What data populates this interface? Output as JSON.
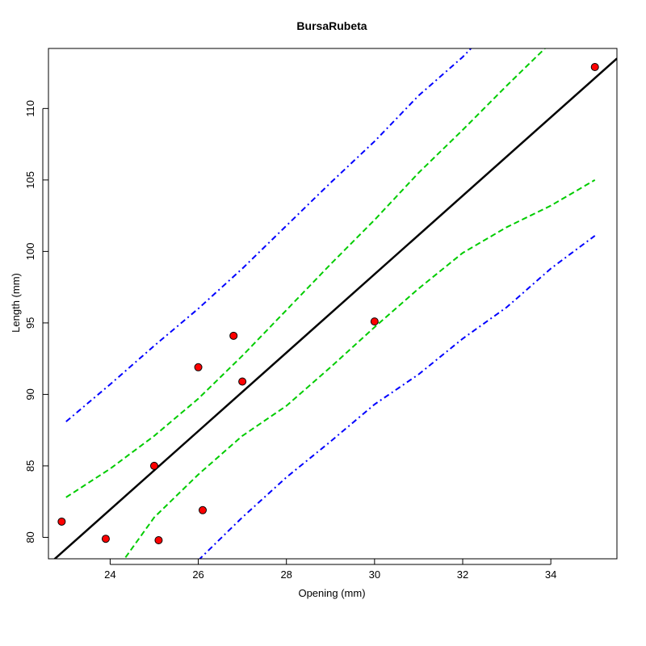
{
  "chart_data": {
    "type": "scatter",
    "title": "BursaRubeta",
    "xlabel": "Opening (mm)",
    "ylabel": "Length (mm)",
    "xlim": [
      22.6,
      35.5
    ],
    "ylim": [
      78.5,
      114.2
    ],
    "xticks": [
      24,
      26,
      28,
      30,
      32,
      34
    ],
    "yticks": [
      80,
      85,
      90,
      95,
      100,
      105,
      110
    ],
    "grid": false,
    "points": {
      "color": "#ff0000",
      "x": [
        22.9,
        23.9,
        25.0,
        25.1,
        26.0,
        26.1,
        26.8,
        27.0,
        30.0,
        35.0
      ],
      "y": [
        81.1,
        79.9,
        85.0,
        79.8,
        91.9,
        81.9,
        94.1,
        90.9,
        95.1,
        112.9
      ]
    },
    "fit_line": {
      "color": "#000000",
      "x": [
        22.6,
        35.5
      ],
      "y": [
        78.1,
        113.5
      ]
    },
    "confidence_band": {
      "color": "#00cc00",
      "upper": {
        "x": [
          23.0,
          24.0,
          25.0,
          26.0,
          27.0,
          28.0,
          29.0,
          30.0,
          31.0,
          32.0,
          33.0,
          34.0,
          35.0
        ],
        "y": [
          82.8,
          84.8,
          87.1,
          89.7,
          92.7,
          95.9,
          99.1,
          102.2,
          105.5,
          108.5,
          111.6,
          114.6,
          117.7
        ]
      },
      "lower": {
        "x": [
          23.0,
          24.0,
          25.0,
          26.0,
          27.0,
          28.0,
          29.0,
          30.0,
          31.0,
          32.0,
          33.0,
          34.0,
          35.0
        ],
        "y": [
          74.0,
          77.1,
          81.4,
          84.4,
          87.1,
          89.2,
          91.9,
          94.7,
          97.4,
          99.9,
          101.7,
          103.2,
          105.0
        ]
      }
    },
    "prediction_band": {
      "color": "#0000ff",
      "upper": {
        "x": [
          23.0,
          24.0,
          25.0,
          26.0,
          27.0,
          28.0,
          29.0,
          30.0,
          31.0,
          32.0,
          32.5
        ],
        "y": [
          88.1,
          90.7,
          93.4,
          96.0,
          98.8,
          101.8,
          104.8,
          107.7,
          110.9,
          113.6,
          115.2
        ]
      },
      "lower": {
        "x": [
          26.0,
          27.0,
          28.0,
          29.0,
          30.0,
          31.0,
          32.0,
          33.0,
          34.0,
          35.0
        ],
        "y": [
          78.4,
          81.4,
          84.2,
          86.7,
          89.3,
          91.4,
          93.9,
          96.1,
          98.8,
          101.1
        ]
      }
    }
  }
}
